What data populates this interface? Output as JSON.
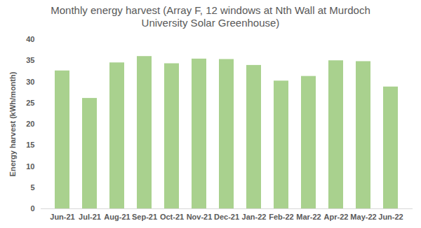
{
  "chart_data": {
    "type": "bar",
    "title": "Monthly energy harvest (Array F, 12 windows at Nth Wall at Murdoch University Solar Greenhouse)",
    "y_label": "Energy harvest (kWh/month)",
    "categories": [
      "Jun-21",
      "Jul-21",
      "Aug-21",
      "Sep-21",
      "Oct-21",
      "Nov-21",
      "Dec-21",
      "Jan-22",
      "Feb-22",
      "Mar-22",
      "Apr-22",
      "May-22",
      "Jun-22"
    ],
    "values": [
      32.6,
      26.1,
      34.5,
      36.0,
      34.3,
      35.4,
      35.3,
      33.9,
      30.2,
      31.3,
      35.0,
      34.8,
      28.8
    ],
    "color": "#a9d18e",
    "ylim": [
      0,
      40
    ],
    "yticks": [
      0,
      5,
      10,
      15,
      20,
      25,
      30,
      35,
      40
    ],
    "grid": false
  }
}
